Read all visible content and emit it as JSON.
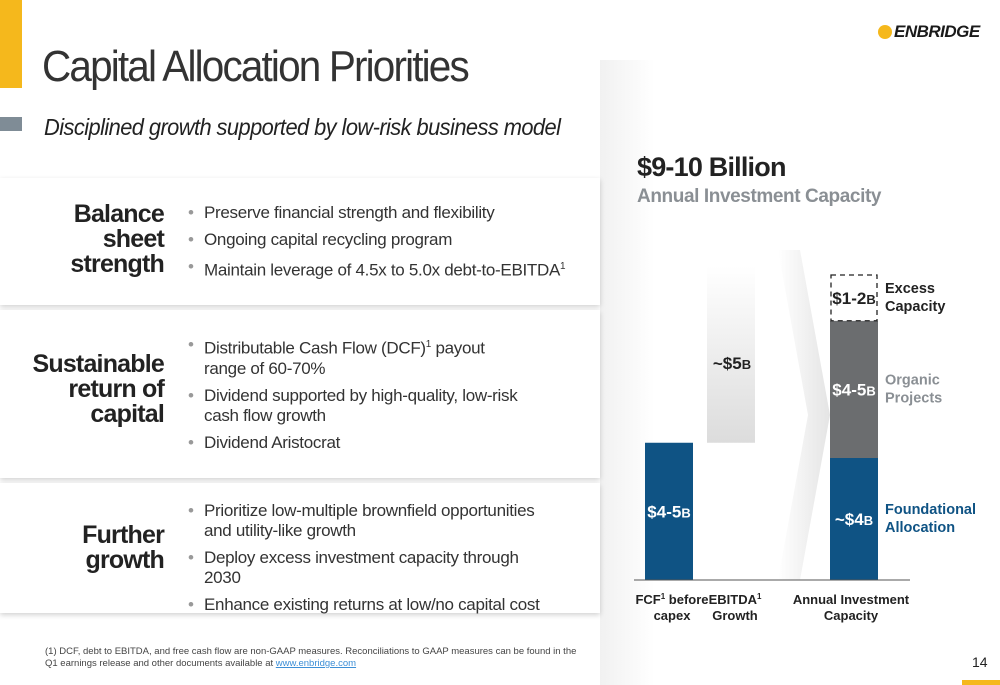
{
  "header": {
    "title": "Capital Allocation Priorities",
    "subtitle": "Disciplined growth supported by low-risk business model",
    "logo_text": "ENBRIDGE"
  },
  "priorities": [
    {
      "heading_lines": [
        "Balance",
        "sheet",
        "strength"
      ],
      "bullets": [
        "Preserve financial strength and flexibility",
        "Ongoing capital recycling program",
        "Maintain leverage of 4.5x to 5.0x debt-to-EBITDA"
      ],
      "bullet_superscripts": [
        "",
        "",
        "1"
      ]
    },
    {
      "heading_lines": [
        "Sustainable",
        "return of",
        "capital"
      ],
      "bullets": [
        "Distributable Cash Flow (DCF)",
        "Dividend supported by high-quality, low-risk cash flow growth",
        "Dividend Aristocrat"
      ],
      "bullet1_tail": " payout range of 60-70%",
      "bullet1_superscript": "1"
    },
    {
      "heading_lines": [
        "Further",
        "growth"
      ],
      "bullets": [
        "Prioritize low-multiple brownfield opportunities and utility-like growth",
        "Deploy excess investment capacity through 2030",
        "Enhance existing returns at low/no capital cost"
      ]
    }
  ],
  "chart_data": {
    "type": "bar",
    "title": "$9-10 Billion",
    "subtitle": "Annual Investment Capacity",
    "unit": "B",
    "categories": [
      "FCF before capex",
      "EBITDA Growth",
      "Annual Investment Capacity"
    ],
    "category_label_lines": [
      [
        "FCF",
        "before"
      ],
      [
        "capex"
      ],
      [
        "EBITDA"
      ],
      [
        "Growth"
      ],
      [
        "Annual Investment"
      ],
      [
        "Capacity"
      ]
    ],
    "category_superscripts": [
      "1",
      "1",
      ""
    ],
    "bars": [
      {
        "category": "FCF before capex",
        "segment": "FCF before capex",
        "label": "$4-5",
        "range": [
          4,
          5
        ],
        "stack_base": 0,
        "color": "#0f5384"
      },
      {
        "category": "EBITDA Growth",
        "segment": "EBITDA Growth",
        "label": "~$5",
        "value": 5,
        "stack_base": 4.5,
        "color": "#e6e6e6",
        "style": "gradient"
      }
    ],
    "stacked": {
      "category": "Annual Investment Capacity",
      "segments": [
        {
          "name": "Foundational Allocation",
          "label": "~$4",
          "value": 4,
          "color": "#0f5384",
          "legend_color": "#0f5384"
        },
        {
          "name": "Organic Projects",
          "label": "$4-5",
          "range": [
            4,
            5
          ],
          "color": "#6b6d6f",
          "legend_color": "#8a8f94"
        },
        {
          "name": "Excess Capacity",
          "label": "$1-2",
          "range": [
            1,
            2
          ],
          "color": "#ffffff",
          "style": "dashed",
          "legend_color": "#222222"
        }
      ]
    },
    "legend_lines": {
      "Foundational Allocation": [
        "Foundational",
        "Allocation"
      ],
      "Organic Projects": [
        "Organic",
        "Projects"
      ],
      "Excess Capacity": [
        "Excess",
        "Capacity"
      ]
    }
  },
  "footnote": {
    "line1": "(1) DCF, debt to EBITDA, and free cash flow are non-GAAP measures. Reconciliations to GAAP measures can be found in the",
    "line2": "Q1 earnings release and other documents available at ",
    "link": "www.enbridge.com"
  },
  "page_number": "14",
  "colors": {
    "accent": "#f5b81c",
    "navy": "#0f5384",
    "gray": "#6b6d6f"
  }
}
